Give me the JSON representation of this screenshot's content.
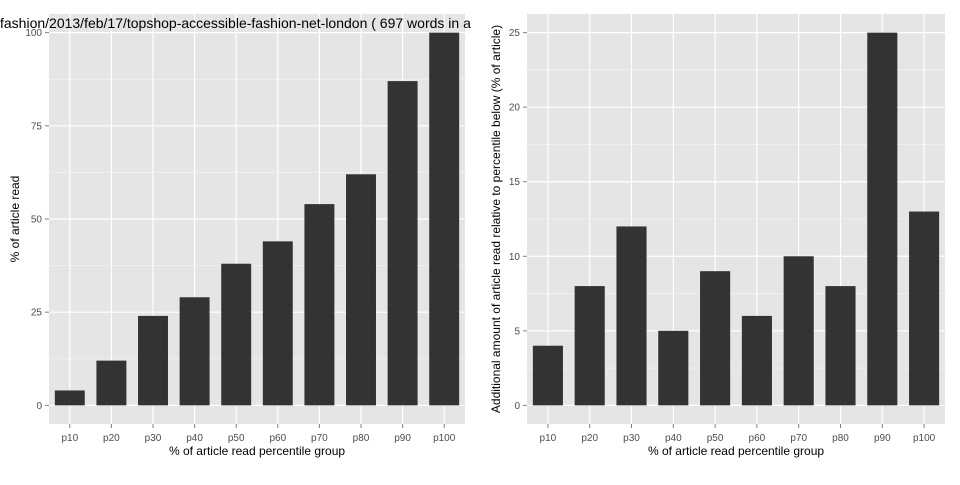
{
  "chart_data": [
    {
      "type": "bar",
      "title": "fashion/2013/feb/17/topshop-accessible-fashion-net-london ( 697 words in a",
      "xlabel": "% of article read percentile group",
      "ylabel": "% of article read",
      "categories": [
        "p10",
        "p20",
        "p30",
        "p40",
        "p50",
        "p60",
        "p70",
        "p80",
        "p90",
        "p100"
      ],
      "values": [
        4,
        12,
        24,
        29,
        38,
        44,
        54,
        62,
        87,
        100
      ],
      "ylim": [
        -5,
        105
      ],
      "yticks": [
        0,
        25,
        50,
        75,
        100
      ],
      "grid": true,
      "colors": {
        "panel": "#e5e5e5",
        "grid": "#ffffff",
        "bar": "#333333"
      }
    },
    {
      "type": "bar",
      "title": "",
      "xlabel": "% of article read percentile group",
      "ylabel": "Additional amount of article read relative to percentile below (% of article)",
      "categories": [
        "p10",
        "p20",
        "p30",
        "p40",
        "p50",
        "p60",
        "p70",
        "p80",
        "p90",
        "p100"
      ],
      "values": [
        4,
        8,
        12,
        5,
        9,
        6,
        10,
        8,
        25,
        13
      ],
      "ylim": [
        -1.25,
        26.25
      ],
      "yticks": [
        0,
        5,
        10,
        15,
        20,
        25
      ],
      "grid": true,
      "colors": {
        "panel": "#e5e5e5",
        "grid": "#ffffff",
        "bar": "#333333"
      }
    }
  ]
}
